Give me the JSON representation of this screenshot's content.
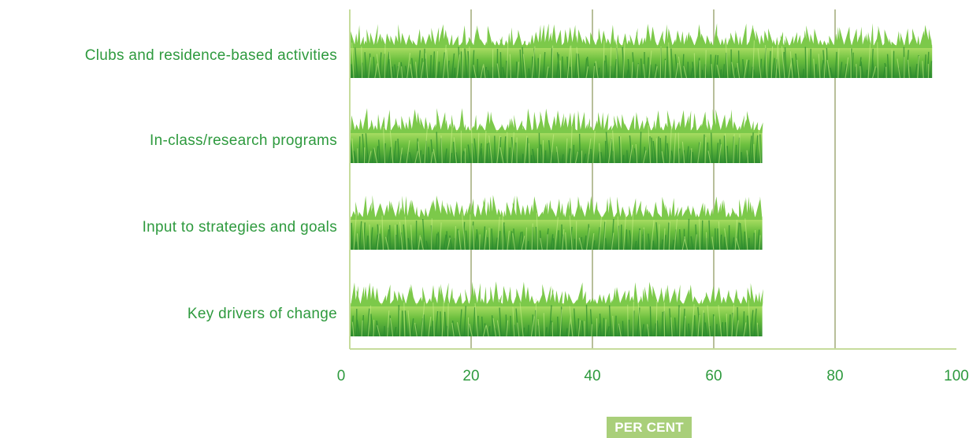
{
  "chart_data": {
    "type": "bar",
    "orientation": "horizontal",
    "categories": [
      "Clubs and residence-based activities",
      "In-class/research programs",
      "Input to strategies and goals",
      "Key drivers of change"
    ],
    "values": [
      96,
      68,
      68,
      68
    ],
    "xlabel": "PER CENT",
    "ylabel": "",
    "xlim": [
      0,
      100
    ],
    "xticks": [
      "0",
      "20",
      "40",
      "60",
      "80",
      "100"
    ],
    "grid": true,
    "colors": {
      "bar_light": "#9ad64e",
      "bar_mid": "#5fb43a",
      "bar_dark": "#2f8c2f",
      "text": "#2e9a3e",
      "grid": "#b8bf9a",
      "axis": "#c6dc9c",
      "xlabel_bg": "#a9cf7a"
    }
  }
}
